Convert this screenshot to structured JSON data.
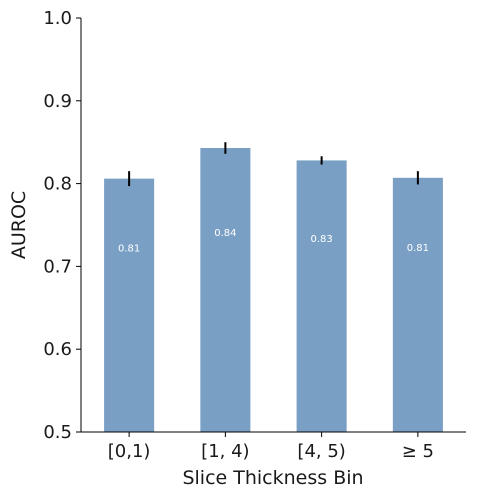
{
  "chart_data": {
    "type": "bar",
    "title": "",
    "xlabel": "Slice Thickness Bin",
    "ylabel": "AUROC",
    "categories": [
      "[0,1)",
      "[1, 4)",
      "[4, 5)",
      "≥ 5"
    ],
    "values": [
      0.806,
      0.843,
      0.828,
      0.807
    ],
    "error": [
      0.009,
      0.007,
      0.005,
      0.008
    ],
    "data_labels": [
      "0.81",
      "0.84",
      "0.83",
      "0.81"
    ],
    "ylim": [
      0.5,
      1.0
    ],
    "yticks": [
      "0.5",
      "0.6",
      "0.7",
      "0.8",
      "0.9",
      "1.0"
    ],
    "grid": false,
    "bar_color": "#7a9fc4",
    "error_color": "#000000"
  }
}
